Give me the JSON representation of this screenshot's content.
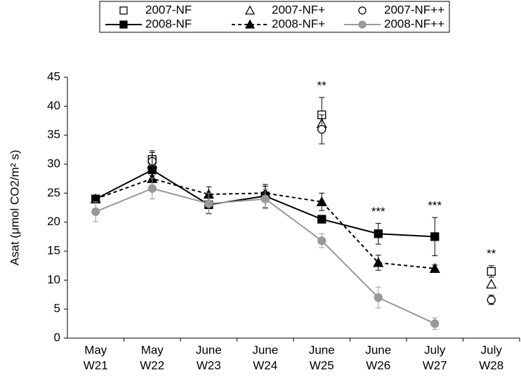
{
  "chart_data": {
    "type": "line",
    "y_label": "Asat (μmol CO2/m² s)",
    "categories": [
      [
        "May",
        "W21"
      ],
      [
        "May",
        "W22"
      ],
      [
        "June",
        "W23"
      ],
      [
        "June",
        "W24"
      ],
      [
        "June",
        "W25"
      ],
      [
        "June",
        "W26"
      ],
      [
        "July",
        "W27"
      ],
      [
        "July",
        "W28"
      ]
    ],
    "ylim": [
      0,
      45
    ],
    "yticks": [
      0,
      5,
      10,
      15,
      20,
      25,
      30,
      35,
      40,
      45
    ],
    "series": [
      {
        "name": "2007-NF",
        "color": "#000000",
        "marker": "square",
        "filled": false,
        "line": "none",
        "values": [
          null,
          30.8,
          null,
          null,
          38.5,
          null,
          null,
          11.5
        ],
        "errors": [
          null,
          1.5,
          null,
          null,
          3,
          null,
          null,
          1
        ]
      },
      {
        "name": "2007-NF+",
        "color": "#000000",
        "marker": "triangle",
        "filled": false,
        "line": "none",
        "values": [
          null,
          30,
          null,
          null,
          37,
          null,
          null,
          9.3
        ],
        "errors": [
          null,
          null,
          null,
          null,
          null,
          null,
          null,
          null
        ]
      },
      {
        "name": "2007-NF++",
        "color": "#000000",
        "marker": "circle",
        "filled": false,
        "line": "none",
        "values": [
          null,
          30.5,
          null,
          null,
          36,
          null,
          null,
          6.6
        ],
        "errors": [
          null,
          null,
          null,
          null,
          2.5,
          null,
          null,
          0.8
        ]
      },
      {
        "name": "2008-NF",
        "color": "#000000",
        "marker": "square",
        "filled": true,
        "line": "solid",
        "values": [
          24,
          29,
          23,
          24.5,
          20.5,
          18,
          17.5,
          null
        ],
        "errors": [
          0.5,
          3,
          1.5,
          2,
          0.5,
          1.8,
          3.3,
          null
        ]
      },
      {
        "name": "2008-NF+",
        "color": "#000000",
        "marker": "triangle",
        "filled": true,
        "line": "dashed",
        "values": [
          24,
          27.5,
          24.8,
          25,
          23.5,
          13,
          12,
          null
        ],
        "errors": [
          0.5,
          0.5,
          1.3,
          1.2,
          1.5,
          1.3,
          0.6,
          null
        ]
      },
      {
        "name": "2008-NF++",
        "color": "#999999",
        "marker": "circle",
        "filled": true,
        "line": "solid",
        "values": [
          21.8,
          25.8,
          23.2,
          24,
          16.8,
          7,
          2.5,
          null
        ],
        "errors": [
          1.7,
          1.8,
          1.8,
          1.7,
          1.2,
          1.8,
          1,
          null
        ]
      }
    ],
    "significance": [
      null,
      null,
      null,
      null,
      "**",
      "***",
      "***",
      "**"
    ]
  }
}
